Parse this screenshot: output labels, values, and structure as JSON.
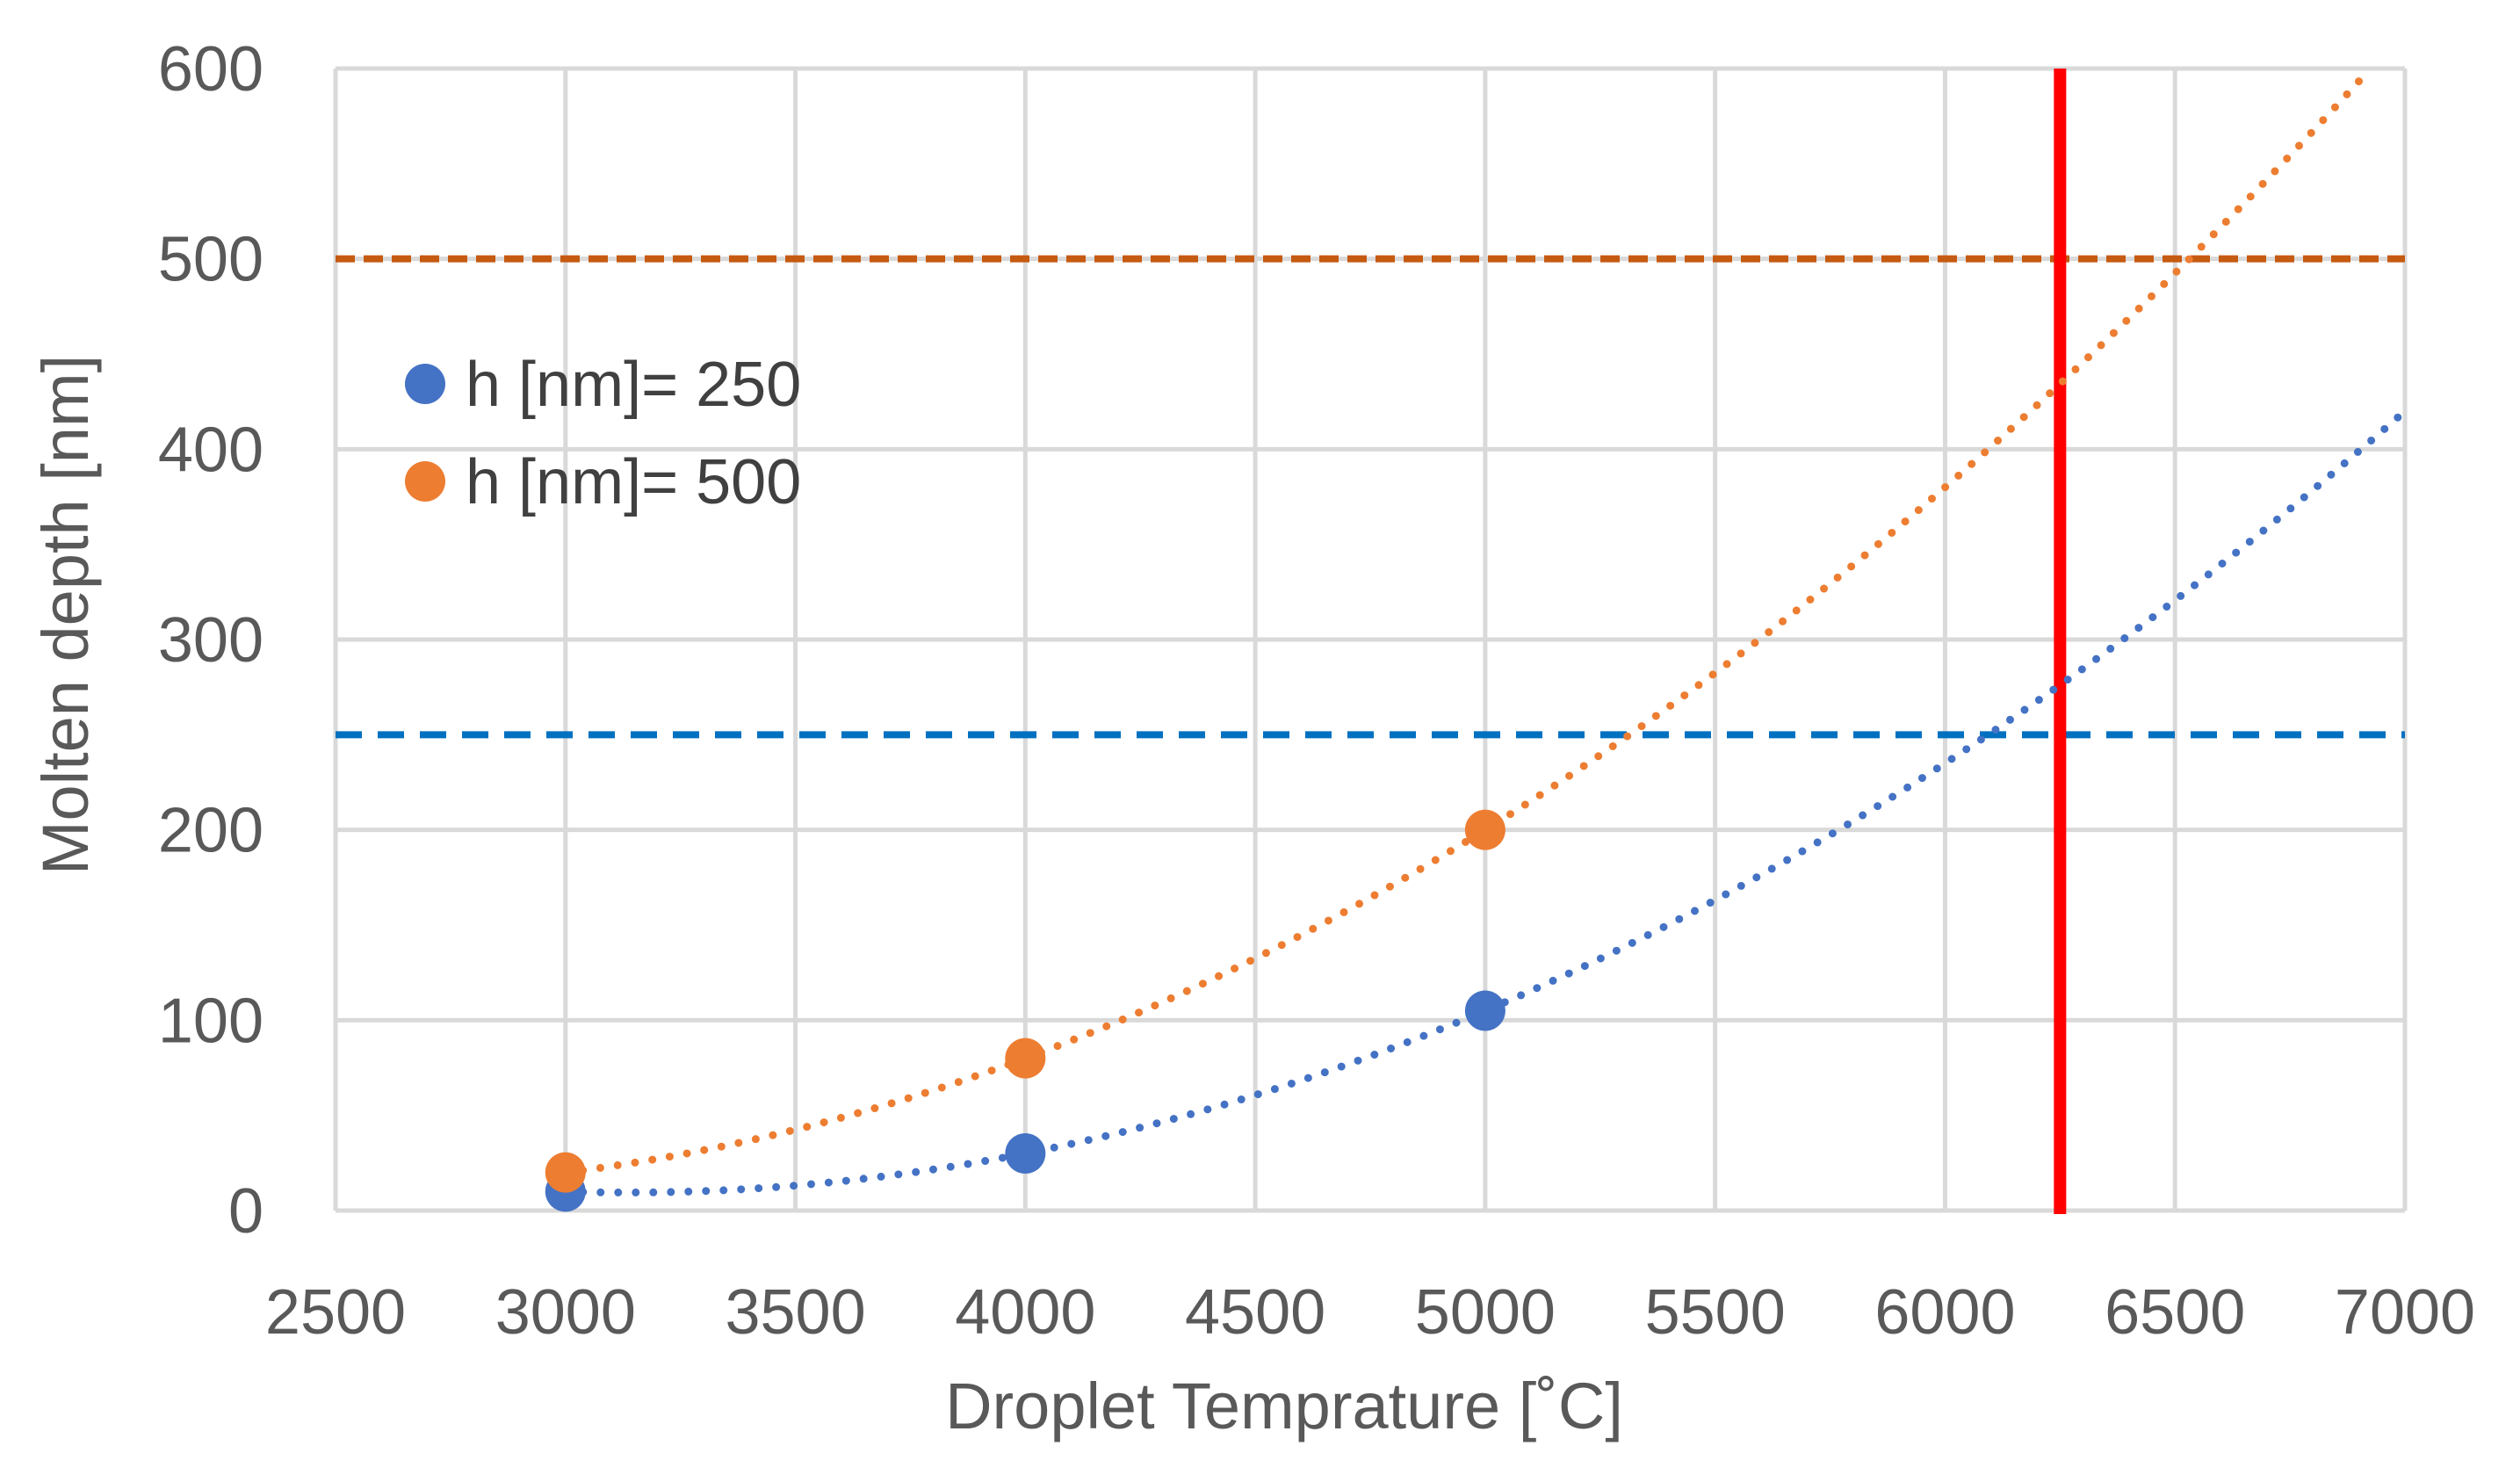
{
  "chart_data": {
    "type": "scatter",
    "xlabel": "Droplet Temprature [˚C]",
    "ylabel": "Molten depth [nm]",
    "xlim": [
      2500,
      7000
    ],
    "ylim": [
      0,
      600
    ],
    "xticks": [
      2500,
      3000,
      3500,
      4000,
      4500,
      5000,
      5500,
      6000,
      6500,
      7000
    ],
    "yticks": [
      0,
      100,
      200,
      300,
      400,
      500,
      600
    ],
    "grid": true,
    "legend_position": "upper-left",
    "series": [
      {
        "name": "h [nm]= 250",
        "label": "h [nm]= 250",
        "color": "#4472C4",
        "x": [
          3000,
          4000,
          5000
        ],
        "y": [
          10,
          30,
          105
        ],
        "trendline": {
          "style": "dotted",
          "x_range": [
            3000,
            7000
          ],
          "y_range": [
            10,
            420
          ]
        }
      },
      {
        "name": "h [nm]= 500",
        "label": "h [nm]= 500",
        "color": "#ED7D31",
        "x": [
          3000,
          4000,
          5000
        ],
        "y": [
          20,
          80,
          200
        ],
        "trendline": {
          "style": "dotted",
          "x_range": [
            3000,
            6920
          ],
          "y_range": [
            20,
            600
          ]
        }
      }
    ],
    "reference_lines": [
      {
        "orientation": "horizontal",
        "value": 500,
        "style": "dashed",
        "color": "#C55A11"
      },
      {
        "orientation": "horizontal",
        "value": 250,
        "style": "dashed",
        "color": "#0070C0"
      },
      {
        "orientation": "vertical",
        "value": 6250,
        "style": "solid",
        "color": "#FF0000"
      }
    ]
  }
}
